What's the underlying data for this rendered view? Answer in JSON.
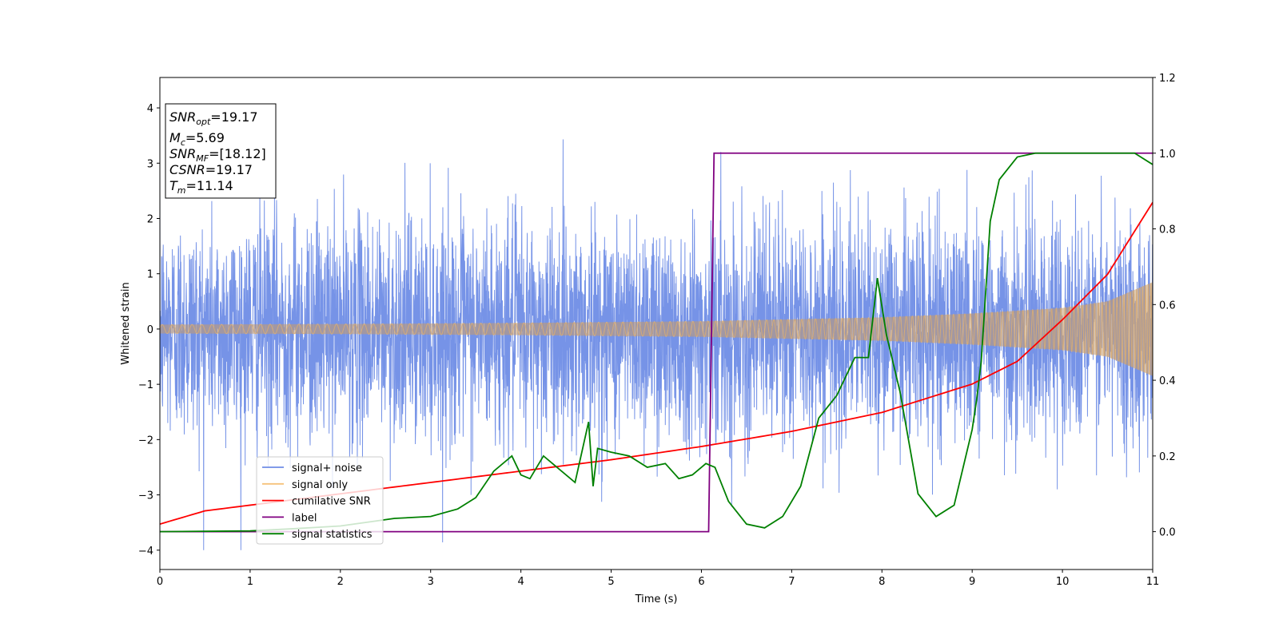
{
  "chart_data": {
    "type": "line",
    "xlabel": "Time (s)",
    "ylabel": "Whitened strain",
    "xlim": [
      0,
      11
    ],
    "ylim_left": [
      -4.35,
      4.55
    ],
    "ylim_right": [
      -0.1,
      1.2
    ],
    "x_ticks": [
      "0",
      "1",
      "2",
      "3",
      "4",
      "5",
      "6",
      "7",
      "8",
      "9",
      "10",
      "11"
    ],
    "y_ticks_left": [
      "4",
      "3",
      "2",
      "1",
      "0",
      "−1",
      "−2",
      "−3",
      "−4"
    ],
    "y_ticks_right": [
      "1.2",
      "1.0",
      "0.8",
      "0.6",
      "0.4",
      "0.2",
      "0.0"
    ],
    "info_box": {
      "line1_var": "SNR",
      "line1_sub": "opt",
      "line1_val": "=19.17",
      "line2_var": "M",
      "line2_sub": "c",
      "line2_val": "=5.69",
      "line3_var": "SNR",
      "line3_sub": "MF",
      "line3_val": "=[18.12]",
      "line4_var": "CSNR",
      "line4_val": "=19.17",
      "line5_var": "T",
      "line5_sub": "m",
      "line5_val": "=11.14"
    },
    "legend": [
      {
        "label": "signal+ noise",
        "color": "#6f8de6"
      },
      {
        "label": "signal only",
        "color": "#f5c27a"
      },
      {
        "label": "cumilative SNR",
        "color": "#ff0000"
      },
      {
        "label": "label",
        "color": "#800080"
      },
      {
        "label": "signal statistics",
        "color": "#008000"
      }
    ],
    "series": [
      {
        "name": "signal+ noise",
        "axis": "left",
        "color": "#6f8de6",
        "description_values": {
          "noise_sigma": 1.0,
          "x_range": [
            0,
            11
          ]
        }
      },
      {
        "name": "signal only",
        "axis": "left",
        "color": "#f5c27a",
        "envelope": {
          "x": [
            0,
            2,
            4,
            6,
            8,
            9,
            10,
            10.5,
            11
          ],
          "amp": [
            0.08,
            0.09,
            0.11,
            0.14,
            0.21,
            0.28,
            0.38,
            0.5,
            0.85
          ]
        }
      },
      {
        "name": "cumilative SNR",
        "axis": "right",
        "color": "#ff0000",
        "x": [
          0,
          0.5,
          1,
          2,
          3,
          4,
          5,
          6,
          7,
          8,
          9,
          9.5,
          10,
          10.5,
          11
        ],
        "y": [
          0.02,
          0.055,
          0.07,
          0.1,
          0.13,
          0.16,
          0.19,
          0.225,
          0.265,
          0.315,
          0.39,
          0.45,
          0.56,
          0.68,
          0.87
        ]
      },
      {
        "name": "label",
        "axis": "right",
        "color": "#800080",
        "x": [
          0,
          6.08,
          6.14,
          11
        ],
        "y": [
          0.0,
          0.0,
          1.0,
          1.0
        ]
      },
      {
        "name": "signal statistics",
        "axis": "right",
        "color": "#008000",
        "x": [
          0,
          1,
          1.5,
          2,
          2.3,
          2.6,
          3,
          3.3,
          3.5,
          3.7,
          3.9,
          4.0,
          4.1,
          4.25,
          4.4,
          4.6,
          4.75,
          4.8,
          4.85,
          5.0,
          5.2,
          5.4,
          5.6,
          5.75,
          5.9,
          6.05,
          6.15,
          6.3,
          6.5,
          6.7,
          6.9,
          7.1,
          7.3,
          7.5,
          7.7,
          7.85,
          7.95,
          8.05,
          8.2,
          8.4,
          8.6,
          8.8,
          9.0,
          9.05,
          9.1,
          9.2,
          9.3,
          9.5,
          9.7,
          10,
          10.5,
          10.8,
          11
        ],
        "y": [
          0.0,
          0.002,
          0.008,
          0.015,
          0.025,
          0.035,
          0.04,
          0.06,
          0.09,
          0.16,
          0.2,
          0.15,
          0.14,
          0.2,
          0.17,
          0.13,
          0.29,
          0.12,
          0.22,
          0.21,
          0.2,
          0.17,
          0.18,
          0.14,
          0.15,
          0.18,
          0.17,
          0.08,
          0.02,
          0.01,
          0.04,
          0.12,
          0.3,
          0.36,
          0.46,
          0.46,
          0.67,
          0.52,
          0.37,
          0.1,
          0.04,
          0.07,
          0.27,
          0.35,
          0.45,
          0.82,
          0.93,
          0.99,
          1.0,
          1.0,
          1.0,
          1.0,
          0.97
        ]
      }
    ]
  }
}
